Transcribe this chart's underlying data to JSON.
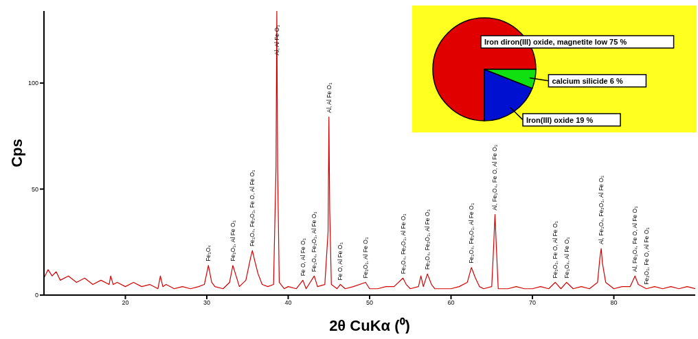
{
  "chart_data": [
    {
      "type": "line",
      "xlabel": "2θ CuKα (⁰)",
      "ylabel": "Cps",
      "x": [
        10,
        10.5,
        11,
        11.5,
        12,
        13,
        14,
        15,
        16,
        17,
        18,
        18.2,
        18.5,
        19,
        20,
        21,
        22,
        23,
        24,
        24.3,
        24.6,
        25,
        26,
        27,
        28,
        29,
        29.7,
        30.2,
        30.6,
        31,
        32,
        32.8,
        33.2,
        33.6,
        34,
        34.8,
        35.4,
        35.6,
        35.9,
        36.3,
        36.8,
        37.5,
        38.2,
        38.5,
        38.6,
        38.7,
        38.9,
        39.5,
        40,
        41,
        41.8,
        42.2,
        43.2,
        43.6,
        44.5,
        44.9,
        45,
        45.1,
        45.3,
        46,
        46.4,
        47,
        48,
        49.5,
        50,
        51,
        52,
        53,
        54.1,
        54.5,
        55,
        56,
        56.3,
        56.6,
        57.1,
        57.6,
        58,
        59,
        60,
        61,
        62,
        62.5,
        63,
        63.5,
        64,
        65,
        65.2,
        65.4,
        65.6,
        65.8,
        67,
        68,
        69,
        70,
        71,
        72,
        72.8,
        73.5,
        74.2,
        75,
        76,
        77,
        78,
        78.3,
        78.45,
        78.6,
        79,
        80,
        81,
        82,
        82.6,
        83,
        84,
        85,
        86,
        87,
        88,
        89,
        90
      ],
      "series": [
        {
          "color": "#d40000",
          "values": [
            8,
            12,
            9,
            11,
            7,
            9,
            6,
            8,
            5,
            7,
            5,
            9,
            5,
            6,
            4,
            6,
            4,
            5,
            3,
            9,
            4,
            5,
            3,
            4,
            3,
            4,
            5,
            14,
            6,
            4,
            3,
            6,
            14,
            9,
            4,
            7,
            18,
            21,
            16,
            10,
            5,
            4,
            5,
            60,
            134,
            60,
            6,
            3,
            4,
            3,
            7,
            3,
            9,
            4,
            5,
            30,
            84,
            40,
            5,
            3,
            5,
            3,
            4,
            6,
            3,
            3,
            4,
            4,
            8,
            5,
            3,
            4,
            9,
            4,
            10,
            5,
            3,
            3,
            3,
            4,
            6,
            13,
            8,
            4,
            3,
            4,
            20,
            38,
            20,
            3,
            3,
            4,
            3,
            3,
            4,
            3,
            6,
            3,
            6,
            3,
            4,
            3,
            6,
            18,
            22,
            15,
            6,
            3,
            4,
            4,
            9,
            5,
            3,
            4,
            3,
            4,
            3,
            4,
            3
          ]
        }
      ],
      "xlim": [
        10,
        90
      ],
      "xticks": [
        20,
        30,
        40,
        50,
        60,
        70,
        80
      ],
      "ylim": [
        0,
        134
      ],
      "yticks": [
        0,
        50,
        100
      ],
      "annotations": [
        {
          "text": "Fe₃O₄",
          "x": 30.2,
          "y": 14
        },
        {
          "text": "Fe₂O₃, Al Fe O₃",
          "x": 33.2,
          "y": 14
        },
        {
          "text": "Fe₃O₄, Fe₂O₃, Fe O, Al Fe O₃",
          "x": 35.6,
          "y": 21
        },
        {
          "text": "Al, Al Fe O₃",
          "x": 38.6,
          "y": 134
        },
        {
          "text": "Fe O, Al Fe O₃",
          "x": 41.8,
          "y": 7
        },
        {
          "text": "Fe₃O₄, Fe₂O₃, Al Fe O₃",
          "x": 43.2,
          "y": 9
        },
        {
          "text": "Al, Al Fe O₃",
          "x": 45,
          "y": 84
        },
        {
          "text": "Fe O, Al Fe O₃",
          "x": 46.4,
          "y": 5
        },
        {
          "text": "Fe₂O₃, Al Fe O₃",
          "x": 49.5,
          "y": 6
        },
        {
          "text": "Fe₃O₄, Fe₂O₃, Al Fe O₃",
          "x": 54.1,
          "y": 8
        },
        {
          "text": "Fe₃O₄, Fe₂O₃, Al Fe O₃",
          "x": 57.1,
          "y": 10
        },
        {
          "text": "Fe₃O₄, Fe₂O₃, Al Fe O₃",
          "x": 62.5,
          "y": 13
        },
        {
          "text": "Al, Fe₃O₄, Fe O, Al Fe O₃",
          "x": 65.4,
          "y": 38
        },
        {
          "text": "Fe₂O₃, Fe O, Al Fe O₃",
          "x": 72.8,
          "y": 6
        },
        {
          "text": "Fe₃O₄, Al Fe O₃",
          "x": 74.2,
          "y": 6
        },
        {
          "text": "Al, Fe₃O₄, Fe₂O₃, Al Fe O₃",
          "x": 78.45,
          "y": 22
        },
        {
          "text": "Al, Fe₃O₄, Fe O, Al Fe O₃",
          "x": 82.6,
          "y": 9
        },
        {
          "text": "Fe₂O₃, Fe O, Al Fe O₃",
          "x": 84,
          "y": 3
        }
      ]
    },
    {
      "type": "pie",
      "categories": [
        "Iron diron(III) oxide, magnetite low",
        "Iron(III) oxide",
        "calcium silicide"
      ],
      "values": [
        75,
        19,
        6
      ],
      "colors": [
        "#e00000",
        "#0010d0",
        "#10e010"
      ],
      "value_labels": [
        "75 %",
        "19 %",
        "6 %"
      ]
    }
  ]
}
